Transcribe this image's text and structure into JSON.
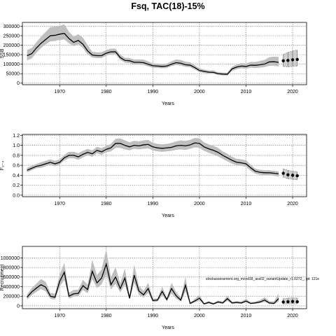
{
  "title": "Fsq, TAC(18)-15%",
  "colors": {
    "band": "#bfbfbf",
    "line": "#000000",
    "grid": "#555555"
  },
  "chart_data": [
    {
      "type": "line",
      "xlabel": "Years",
      "ylabel": "SSB",
      "xlim": [
        1962,
        2023
      ],
      "ylim": [
        -8000,
        320000
      ],
      "xticks": [
        1970,
        1980,
        1990,
        2000,
        2010,
        2020
      ],
      "yticks": [
        0,
        50000,
        100000,
        150000,
        200000,
        250000,
        300000
      ],
      "ytick_labels": [
        "0",
        "50000",
        "100000",
        "150000",
        "200000",
        "250000",
        "300000"
      ],
      "grid": true,
      "years": [
        1963,
        1964,
        1965,
        1966,
        1967,
        1968,
        1969,
        1970,
        1971,
        1972,
        1973,
        1974,
        1975,
        1976,
        1977,
        1978,
        1979,
        1980,
        1981,
        1982,
        1983,
        1984,
        1985,
        1986,
        1987,
        1988,
        1989,
        1990,
        1991,
        1992,
        1993,
        1994,
        1995,
        1996,
        1997,
        1998,
        1999,
        2000,
        2001,
        2002,
        2003,
        2004,
        2005,
        2006,
        2007,
        2008,
        2009,
        2010,
        2011,
        2012,
        2013,
        2014,
        2015,
        2016,
        2017
      ],
      "median": [
        145000,
        155000,
        185000,
        210000,
        230000,
        250000,
        252000,
        258000,
        262000,
        235000,
        215000,
        225000,
        205000,
        170000,
        148000,
        145000,
        145000,
        158000,
        165000,
        165000,
        135000,
        120000,
        118000,
        110000,
        110000,
        108000,
        100000,
        92000,
        90000,
        88000,
        90000,
        100000,
        108000,
        105000,
        97000,
        95000,
        82000,
        67000,
        62000,
        58000,
        57000,
        50000,
        48000,
        47000,
        75000,
        85000,
        90000,
        88000,
        95000,
        94000,
        97000,
        101000,
        112000,
        113000,
        110000
      ],
      "lower": [
        120000,
        130000,
        160000,
        185000,
        205000,
        220000,
        222000,
        228000,
        230000,
        210000,
        195000,
        205000,
        185000,
        152000,
        135000,
        132000,
        132000,
        145000,
        152000,
        152000,
        122000,
        108000,
        106000,
        98000,
        98000,
        96000,
        88000,
        82000,
        80000,
        78000,
        80000,
        90000,
        96000,
        93000,
        86000,
        84000,
        72000,
        58000,
        54000,
        50000,
        49000,
        43000,
        41000,
        40000,
        65000,
        74000,
        78000,
        76000,
        82000,
        80000,
        82000,
        85000,
        92000,
        92000,
        88000
      ],
      "upper": [
        175000,
        185000,
        215000,
        245000,
        270000,
        295000,
        298000,
        302000,
        310000,
        270000,
        245000,
        258000,
        240000,
        200000,
        165000,
        162000,
        163000,
        175000,
        182000,
        182000,
        150000,
        134000,
        132000,
        124000,
        125000,
        124000,
        115000,
        104000,
        103000,
        101000,
        103000,
        115000,
        125000,
        122000,
        113000,
        110000,
        95000,
        78000,
        72000,
        67000,
        67000,
        58000,
        56000,
        55000,
        87000,
        99000,
        106000,
        104000,
        112000,
        112000,
        117000,
        123000,
        137000,
        140000,
        138000
      ],
      "projection": {
        "years": [
          2018,
          2019,
          2020,
          2021
        ],
        "median": [
          118000,
          120000,
          123000,
          125000
        ],
        "lower": [
          88000,
          86000,
          88000,
          90000
        ],
        "upper": [
          152000,
          162000,
          170000,
          175000
        ]
      }
    },
    {
      "type": "line",
      "xlabel": "Years",
      "ylabel": "F₂₋₄",
      "xlim": [
        1962,
        2023
      ],
      "ylim": [
        -0.03,
        1.22
      ],
      "xticks": [
        1970,
        1980,
        1990,
        2000,
        2010,
        2020
      ],
      "yticks": [
        0,
        0.2,
        0.4,
        0.6,
        0.8,
        1.0,
        1.2
      ],
      "ytick_labels": [
        "0.0",
        "0.2",
        "0.4",
        "0.6",
        "0.8",
        "1.0",
        "1.2"
      ],
      "grid": true,
      "years": [
        1963,
        1964,
        1965,
        1966,
        1967,
        1968,
        1969,
        1970,
        1971,
        1972,
        1973,
        1974,
        1975,
        1976,
        1977,
        1978,
        1979,
        1980,
        1981,
        1982,
        1983,
        1984,
        1985,
        1986,
        1987,
        1988,
        1989,
        1990,
        1991,
        1992,
        1993,
        1994,
        1995,
        1996,
        1997,
        1998,
        1999,
        2000,
        2001,
        2002,
        2003,
        2004,
        2005,
        2006,
        2007,
        2008,
        2009,
        2010,
        2011,
        2012,
        2013,
        2014,
        2015,
        2016,
        2017
      ],
      "median": [
        0.5,
        0.54,
        0.58,
        0.6,
        0.63,
        0.66,
        0.63,
        0.66,
        0.75,
        0.8,
        0.8,
        0.77,
        0.82,
        0.86,
        0.83,
        0.9,
        0.87,
        0.92,
        0.95,
        1.04,
        1.04,
        1.0,
        0.97,
        1.0,
        0.99,
        1.01,
        1.02,
        0.97,
        0.95,
        0.94,
        0.95,
        0.96,
        0.99,
        1.0,
        0.99,
        1.01,
        1.05,
        1.04,
        0.97,
        0.93,
        0.9,
        0.86,
        0.8,
        0.75,
        0.7,
        0.66,
        0.65,
        0.63,
        0.55,
        0.48,
        0.46,
        0.45,
        0.45,
        0.44,
        0.43
      ],
      "lower": [
        0.46,
        0.5,
        0.54,
        0.55,
        0.58,
        0.61,
        0.58,
        0.61,
        0.7,
        0.74,
        0.74,
        0.71,
        0.76,
        0.8,
        0.77,
        0.84,
        0.81,
        0.86,
        0.88,
        0.95,
        0.95,
        0.92,
        0.9,
        0.93,
        0.92,
        0.93,
        0.94,
        0.9,
        0.88,
        0.87,
        0.88,
        0.89,
        0.91,
        0.92,
        0.91,
        0.93,
        0.96,
        0.95,
        0.89,
        0.85,
        0.82,
        0.78,
        0.73,
        0.68,
        0.63,
        0.6,
        0.59,
        0.57,
        0.49,
        0.43,
        0.41,
        0.4,
        0.4,
        0.39,
        0.37
      ],
      "upper": [
        0.55,
        0.59,
        0.63,
        0.66,
        0.69,
        0.72,
        0.69,
        0.72,
        0.81,
        0.87,
        0.87,
        0.84,
        0.89,
        0.93,
        0.9,
        0.97,
        0.94,
        0.99,
        1.03,
        1.13,
        1.14,
        1.1,
        1.06,
        1.09,
        1.08,
        1.1,
        1.11,
        1.05,
        1.03,
        1.02,
        1.03,
        1.05,
        1.08,
        1.1,
        1.09,
        1.11,
        1.15,
        1.14,
        1.06,
        1.02,
        0.99,
        0.95,
        0.88,
        0.83,
        0.77,
        0.73,
        0.72,
        0.7,
        0.61,
        0.53,
        0.51,
        0.5,
        0.5,
        0.49,
        0.48
      ],
      "projection": {
        "years": [
          2018,
          2019,
          2020,
          2021
        ],
        "median": [
          0.44,
          0.41,
          0.4,
          0.39
        ],
        "lower": [
          0.36,
          0.33,
          0.32,
          0.31
        ],
        "upper": [
          0.53,
          0.5,
          0.48,
          0.47
        ]
      }
    },
    {
      "type": "line",
      "xlabel": "Years",
      "ylabel": "Recruitment",
      "xlim": [
        1962,
        2023
      ],
      "ylim": [
        -60000,
        1240000
      ],
      "xticks": [
        1970,
        1980,
        1990,
        2000,
        2010,
        2020
      ],
      "yticks": [
        0,
        200000,
        400000,
        600000,
        800000,
        1000000
      ],
      "ytick_labels": [
        "0",
        "200000",
        "400000",
        "600000",
        "800000",
        "1000000"
      ],
      "grid": true,
      "annotation": "stockassessment.org_mcod18_ass02_variantUpdate_r1.0272_, git: 121e",
      "years": [
        1963,
        1964,
        1965,
        1966,
        1967,
        1968,
        1969,
        1970,
        1971,
        1972,
        1973,
        1974,
        1975,
        1976,
        1977,
        1978,
        1979,
        1980,
        1981,
        1982,
        1983,
        1984,
        1985,
        1986,
        1987,
        1988,
        1989,
        1990,
        1991,
        1992,
        1993,
        1994,
        1995,
        1996,
        1997,
        1998,
        1999,
        2000,
        2001,
        2002,
        2003,
        2004,
        2005,
        2006,
        2007,
        2008,
        2009,
        2010,
        2011,
        2012,
        2013,
        2014,
        2015,
        2016,
        2017
      ],
      "median": [
        180000,
        290000,
        370000,
        440000,
        390000,
        200000,
        180000,
        510000,
        700000,
        200000,
        250000,
        260000,
        420000,
        340000,
        720000,
        480000,
        580000,
        870000,
        440000,
        600000,
        360000,
        580000,
        160000,
        640000,
        310000,
        230000,
        360000,
        110000,
        120000,
        300000,
        130000,
        360000,
        210000,
        120000,
        430000,
        50000,
        100000,
        160000,
        40000,
        70000,
        40000,
        80000,
        60000,
        150000,
        60000,
        70000,
        60000,
        100000,
        50000,
        60000,
        80000,
        120000,
        60000,
        50000,
        150000
      ],
      "lower": [
        130000,
        220000,
        290000,
        350000,
        300000,
        150000,
        130000,
        400000,
        540000,
        150000,
        190000,
        200000,
        330000,
        260000,
        560000,
        370000,
        450000,
        660000,
        340000,
        460000,
        280000,
        440000,
        120000,
        480000,
        230000,
        170000,
        270000,
        80000,
        90000,
        220000,
        100000,
        260000,
        150000,
        90000,
        300000,
        35000,
        70000,
        110000,
        28000,
        50000,
        28000,
        55000,
        42000,
        100000,
        42000,
        50000,
        42000,
        70000,
        35000,
        42000,
        55000,
        80000,
        40000,
        30000,
        90000
      ],
      "upper": [
        240000,
        370000,
        460000,
        560000,
        500000,
        270000,
        250000,
        650000,
        900000,
        270000,
        330000,
        340000,
        540000,
        440000,
        960000,
        640000,
        760000,
        1180000,
        600000,
        810000,
        470000,
        780000,
        210000,
        860000,
        420000,
        310000,
        480000,
        150000,
        160000,
        400000,
        170000,
        480000,
        290000,
        170000,
        600000,
        70000,
        140000,
        230000,
        60000,
        100000,
        60000,
        115000,
        90000,
        210000,
        85000,
        100000,
        90000,
        145000,
        75000,
        90000,
        120000,
        180000,
        95000,
        90000,
        260000
      ],
      "projection": {
        "years": [
          2018,
          2019,
          2020,
          2021
        ],
        "median": [
          80000,
          85000,
          90000,
          85000
        ],
        "lower": [
          35000,
          40000,
          40000,
          40000
        ],
        "upper": [
          150000,
          160000,
          165000,
          160000
        ]
      }
    }
  ]
}
